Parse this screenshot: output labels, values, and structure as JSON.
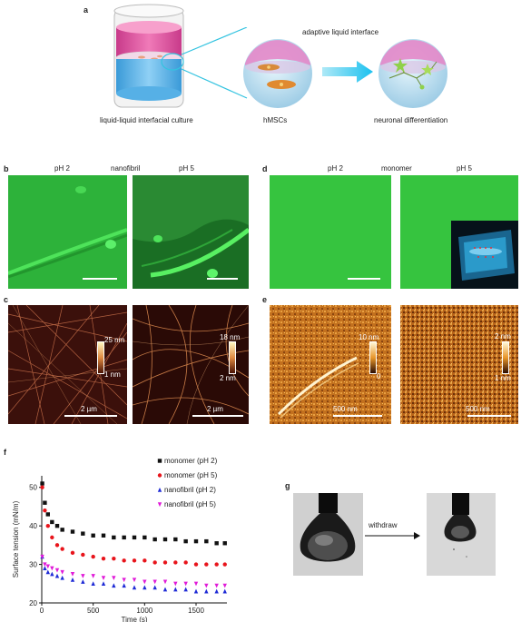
{
  "panel_a": {
    "label": "a",
    "caption_culture": "liquid-liquid interfacial culture",
    "caption_interface": "adaptive liquid interface",
    "caption_hmsc": "hMSCs",
    "caption_neuronal": "neuronal differentiation"
  },
  "panel_b": {
    "label": "b",
    "left_title": "pH 2",
    "mid_title": "nanofibril",
    "right_title": "pH 5"
  },
  "panel_c": {
    "label": "c",
    "left": {
      "cbar_top": "25 nm",
      "cbar_bottom": "1 nm",
      "scale": "2 µm"
    },
    "right": {
      "cbar_top": "18 nm",
      "cbar_bottom": "2 nm",
      "scale": "2 µm"
    }
  },
  "panel_d": {
    "label": "d",
    "left_title": "pH 2",
    "mid_title": "monomer",
    "right_title": "pH 5"
  },
  "panel_e": {
    "label": "e",
    "left": {
      "cbar_top": "10 nm",
      "cbar_bottom": "0",
      "scale": "500 nm"
    },
    "right": {
      "cbar_top": "2 nm",
      "cbar_bottom": "1 nm",
      "scale": "500 nm"
    }
  },
  "panel_f": {
    "label": "f"
  },
  "panel_g": {
    "label": "g",
    "arrow_text": "withdraw"
  },
  "chart_data": {
    "type": "scatter",
    "xlabel": "Time (s)",
    "ylabel": "Surface tension (mN/m)",
    "xlim": [
      0,
      1800
    ],
    "ylim": [
      20,
      53
    ],
    "xticks": [
      0,
      500,
      1000,
      1500
    ],
    "yticks": [
      20,
      30,
      40,
      50
    ],
    "legend_position": "top-right",
    "series": [
      {
        "name": "monomer (pH 2)",
        "color": "#111111",
        "marker": "square",
        "x": [
          5,
          30,
          60,
          100,
          150,
          200,
          300,
          400,
          500,
          600,
          700,
          800,
          900,
          1000,
          1100,
          1200,
          1300,
          1400,
          1500,
          1600,
          1700,
          1780
        ],
        "y": [
          51,
          46,
          43,
          41,
          40,
          39,
          38.5,
          38,
          37.5,
          37.5,
          37,
          37,
          37,
          37,
          36.5,
          36.5,
          36.5,
          36,
          36,
          36,
          35.5,
          35.5
        ]
      },
      {
        "name": "monomer (pH 5)",
        "color": "#e8141b",
        "marker": "circle",
        "x": [
          5,
          30,
          60,
          100,
          150,
          200,
          300,
          400,
          500,
          600,
          700,
          800,
          900,
          1000,
          1100,
          1200,
          1300,
          1400,
          1500,
          1600,
          1700,
          1780
        ],
        "y": [
          50,
          44,
          40,
          37,
          35,
          34,
          33,
          32.5,
          32,
          31.5,
          31.5,
          31,
          31,
          31,
          30.5,
          30.5,
          30.5,
          30.5,
          30,
          30,
          30,
          30
        ]
      },
      {
        "name": "nanofibril (pH 2)",
        "color": "#1f2bd6",
        "marker": "triangle-up",
        "x": [
          5,
          30,
          60,
          100,
          150,
          200,
          300,
          400,
          500,
          600,
          700,
          800,
          900,
          1000,
          1100,
          1200,
          1300,
          1400,
          1500,
          1600,
          1700,
          1780
        ],
        "y": [
          32,
          29,
          28,
          27.5,
          27,
          26.5,
          26,
          25.5,
          25,
          25,
          24.5,
          24.5,
          24,
          24,
          24,
          23.5,
          23.5,
          23.5,
          23,
          23,
          23,
          23
        ]
      },
      {
        "name": "nanofibril (pH 5)",
        "color": "#e01ad8",
        "marker": "triangle-down",
        "x": [
          5,
          30,
          60,
          100,
          150,
          200,
          300,
          400,
          500,
          600,
          700,
          800,
          900,
          1000,
          1100,
          1200,
          1300,
          1400,
          1500,
          1600,
          1700,
          1780
        ],
        "y": [
          32,
          30,
          29.5,
          29,
          28.5,
          28,
          27.5,
          27,
          27,
          26.5,
          26.5,
          26,
          26,
          25.5,
          25.5,
          25.5,
          25,
          25,
          25,
          24.5,
          24.5,
          24.5
        ]
      }
    ]
  }
}
